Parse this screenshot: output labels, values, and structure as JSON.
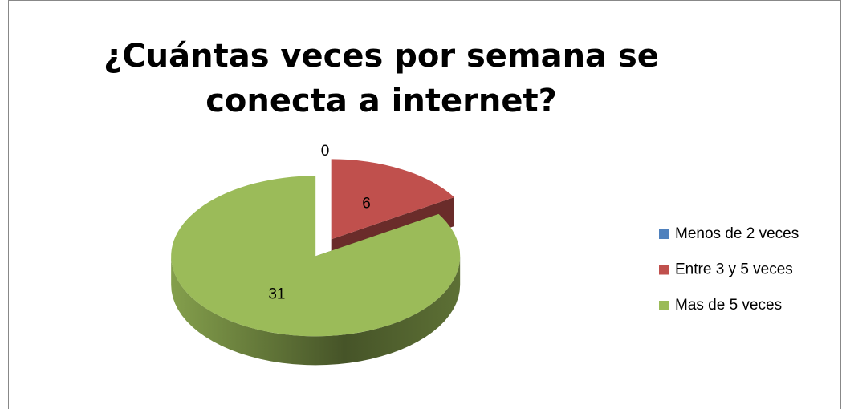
{
  "chart_data": {
    "type": "pie3d",
    "title": "¿Cuántas veces por semana se conecta a internet?",
    "categories": [
      "Menos de 2 veces",
      "Entre 3 y 5 veces",
      "Mas de 5 veces"
    ],
    "values": [
      0,
      6,
      31
    ],
    "colors": [
      "#4f81bd",
      "#c0504d",
      "#9bbb59"
    ],
    "legend": "right"
  }
}
